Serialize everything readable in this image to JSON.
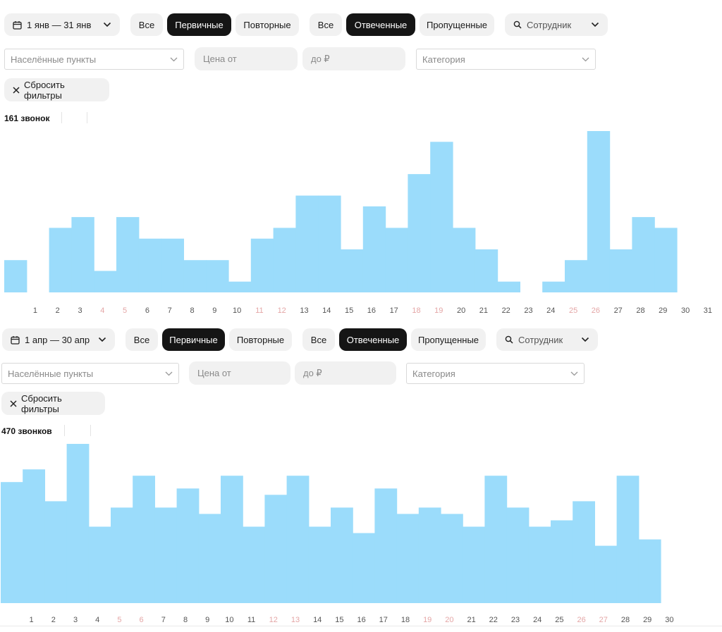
{
  "panels": [
    {
      "date_range": "1 янв — 31 янв",
      "type_filters": [
        "Все",
        "Первичные",
        "Повторные"
      ],
      "type_selected": 1,
      "status_filters": [
        "Все",
        "Отвеченные",
        "Пропущенные"
      ],
      "status_selected": 1,
      "employee_placeholder": "Сотрудник",
      "locality_placeholder": "Населённые пункты",
      "price_from_placeholder": "Цена от",
      "price_to_placeholder": "до ₽",
      "category_placeholder": "Категория",
      "reset_label": "Сбросить фильтры",
      "count_label": "161 звонок"
    },
    {
      "date_range": "1 апр — 30 апр",
      "type_filters": [
        "Все",
        "Первичные",
        "Повторные"
      ],
      "type_selected": 1,
      "status_filters": [
        "Все",
        "Отвеченные",
        "Пропущенные"
      ],
      "status_selected": 1,
      "employee_placeholder": "Сотрудник",
      "locality_placeholder": "Населённые пункты",
      "price_from_placeholder": "Цена от",
      "price_to_placeholder": "до ₽",
      "category_placeholder": "Категория",
      "reset_label": "Сбросить фильтры",
      "count_label": "470 звонков"
    }
  ],
  "colors": {
    "bar": "#9bdcfb",
    "weekday_label": "#555555",
    "weekend_label": "#e4a6a6",
    "selected_bg": "#151515"
  },
  "chart_data": [
    {
      "type": "bar",
      "title": "",
      "xlabel": "",
      "ylabel": "",
      "categories": [
        "1",
        "2",
        "3",
        "4",
        "5",
        "6",
        "7",
        "8",
        "9",
        "10",
        "11",
        "12",
        "13",
        "14",
        "15",
        "16",
        "17",
        "18",
        "19",
        "20",
        "21",
        "22",
        "23",
        "24",
        "25",
        "26",
        "27",
        "28",
        "29",
        "30",
        "31"
      ],
      "weekend_days": [
        "4",
        "5",
        "11",
        "12",
        "18",
        "19",
        "25",
        "26"
      ],
      "values": [
        3,
        0,
        6,
        7,
        2,
        7,
        5,
        5,
        3,
        3,
        1,
        5,
        6,
        9,
        9,
        4,
        8,
        6,
        11,
        14,
        6,
        4,
        1,
        0,
        1,
        3,
        15,
        4,
        7,
        6,
        0
      ],
      "ylim": [
        0,
        15
      ],
      "grid": false,
      "legend": "none"
    },
    {
      "type": "bar",
      "title": "",
      "xlabel": "",
      "ylabel": "",
      "categories": [
        "1",
        "2",
        "3",
        "4",
        "5",
        "6",
        "7",
        "8",
        "9",
        "10",
        "11",
        "12",
        "13",
        "14",
        "15",
        "16",
        "17",
        "18",
        "19",
        "20",
        "21",
        "22",
        "23",
        "24",
        "25",
        "26",
        "27",
        "28",
        "29",
        "30"
      ],
      "weekend_days": [
        "5",
        "6",
        "12",
        "13",
        "19",
        "20",
        "26",
        "27"
      ],
      "values": [
        19,
        21,
        16,
        25,
        12,
        15,
        20,
        15,
        18,
        14,
        20,
        12,
        17,
        20,
        12,
        15,
        11,
        18,
        14,
        15,
        14,
        12,
        20,
        15,
        12,
        13,
        16,
        9,
        20,
        10
      ],
      "ylim": [
        0,
        25
      ],
      "grid": false,
      "legend": "none"
    }
  ]
}
